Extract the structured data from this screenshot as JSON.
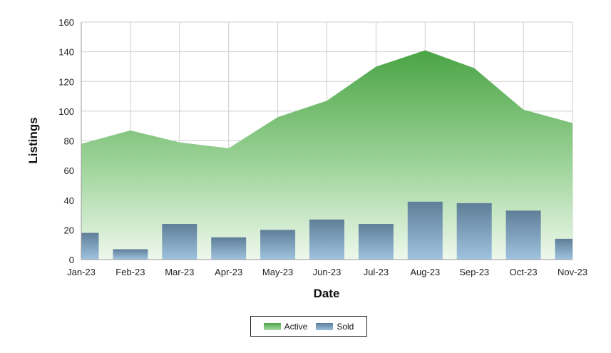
{
  "chart_data": {
    "type": "area",
    "categories": [
      "Jan-23",
      "Feb-23",
      "Mar-23",
      "Apr-23",
      "May-23",
      "Jun-23",
      "Jul-23",
      "Aug-23",
      "Sep-23",
      "Oct-23",
      "Nov-23"
    ],
    "series": [
      {
        "name": "Active",
        "type": "area",
        "color": "#4fa84a",
        "values": [
          78,
          87,
          79,
          75,
          96,
          107,
          130,
          141,
          129,
          101,
          92
        ]
      },
      {
        "name": "Sold",
        "type": "bar",
        "color": "#6f90ab",
        "values": [
          18,
          7,
          24,
          15,
          20,
          27,
          24,
          39,
          38,
          33,
          14
        ]
      }
    ],
    "title": "",
    "xlabel": "Date",
    "ylabel": "Listings",
    "ylim": [
      0,
      160
    ],
    "yticks": [
      0,
      20,
      40,
      60,
      80,
      100,
      120,
      140,
      160
    ],
    "grid": true,
    "legend_position": "bottom"
  },
  "legend": {
    "active_label": "Active",
    "sold_label": "Sold"
  }
}
